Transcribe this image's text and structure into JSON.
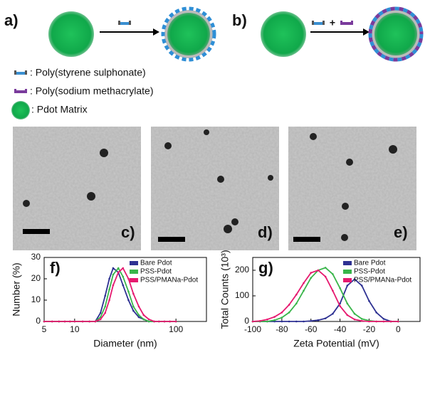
{
  "scheme": {
    "panels": [
      "a)",
      "b)"
    ],
    "plus": "+",
    "legend": [
      ": Poly(styrene sulphonate)",
      ": Poly(sodium methacrylate)",
      ": Pdot Matrix"
    ]
  },
  "tem": {
    "labels": [
      "c)",
      "d)",
      "e)"
    ]
  },
  "chart_data": [
    {
      "type": "line",
      "panel_label": "f)",
      "xlabel": "Diameter (nm)",
      "ylabel": "Number (%)",
      "xscale": "log",
      "xlim": [
        5,
        200
      ],
      "ylim": [
        0,
        30
      ],
      "xticks": [
        5,
        10,
        100
      ],
      "yticks": [
        0,
        10,
        20,
        30
      ],
      "legend": "upper right",
      "x": [
        5,
        6,
        7,
        8,
        9,
        10,
        12,
        14,
        16,
        18,
        20,
        22,
        24,
        27,
        30,
        34,
        38,
        43,
        48,
        54,
        61,
        68,
        77,
        87,
        100
      ],
      "series": [
        {
          "name": "Bare Pdot",
          "color": "#2e3192",
          "values": [
            0,
            0,
            0,
            0,
            0,
            0,
            0,
            0,
            0,
            4,
            12,
            20,
            25,
            23,
            17,
            10,
            5,
            2,
            1,
            0,
            0,
            0,
            0,
            0,
            0
          ]
        },
        {
          "name": "PSS-Pdot",
          "color": "#39b54a",
          "values": [
            0,
            0,
            0,
            0,
            0,
            0,
            0,
            0,
            0,
            2,
            7,
            15,
            22,
            25,
            21,
            14,
            7,
            3,
            1,
            0,
            0,
            0,
            0,
            0,
            0
          ]
        },
        {
          "name": "PSS/PMANa-Pdot",
          "color": "#e6196f",
          "values": [
            0,
            0,
            0,
            0,
            0,
            0,
            0,
            0,
            0,
            1,
            4,
            10,
            17,
            23,
            25,
            20,
            13,
            7,
            3,
            1,
            0,
            0,
            0,
            0,
            0
          ]
        }
      ]
    },
    {
      "type": "line",
      "panel_label": "g)",
      "xlabel": "Zeta Potential (mV)",
      "ylabel": "Total Counts (10³)",
      "xlim": [
        -100,
        15
      ],
      "ylim": [
        0,
        250
      ],
      "xticks": [
        -100,
        -80,
        -60,
        -40,
        -20,
        0
      ],
      "yticks": [
        0,
        100,
        200
      ],
      "legend": "upper right",
      "x": [
        -100,
        -95,
        -90,
        -85,
        -80,
        -75,
        -70,
        -65,
        -60,
        -55,
        -50,
        -45,
        -40,
        -35,
        -30,
        -25,
        -20,
        -15,
        -10,
        -5,
        0
      ],
      "series": [
        {
          "name": "Bare Pdot",
          "color": "#2e3192",
          "values": [
            0,
            0,
            0,
            0,
            0,
            0,
            0,
            0,
            2,
            5,
            12,
            30,
            70,
            140,
            165,
            140,
            80,
            35,
            10,
            0,
            0
          ]
        },
        {
          "name": "PSS-Pdot",
          "color": "#39b54a",
          "values": [
            0,
            0,
            0,
            5,
            15,
            35,
            70,
            120,
            170,
            200,
            210,
            185,
            130,
            70,
            30,
            10,
            3,
            0,
            0,
            0,
            0
          ]
        },
        {
          "name": "PSS/PMANa-Pdot",
          "color": "#e6196f",
          "values": [
            0,
            2,
            8,
            18,
            35,
            65,
            105,
            150,
            190,
            200,
            175,
            120,
            60,
            25,
            8,
            2,
            0,
            0,
            0,
            0,
            0
          ]
        }
      ]
    }
  ]
}
